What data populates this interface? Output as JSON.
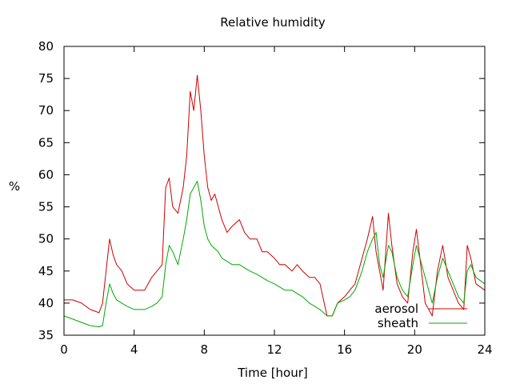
{
  "chart_data": {
    "type": "line",
    "title": "Relative humidity",
    "xlabel": "Time [hour]",
    "ylabel": "%",
    "xlim": [
      0,
      24
    ],
    "ylim": [
      35,
      80
    ],
    "xticks": [
      0,
      4,
      8,
      12,
      16,
      20,
      24
    ],
    "yticks": [
      35,
      40,
      45,
      50,
      55,
      60,
      65,
      70,
      75,
      80
    ],
    "grid": false,
    "legend_position": "bottom-right",
    "series": [
      {
        "name": "aerosol",
        "color": "#cc0000",
        "x": [
          0,
          0.5,
          1,
          1.5,
          2,
          2.2,
          2.4,
          2.6,
          2.8,
          3,
          3.3,
          3.6,
          4,
          4.3,
          4.6,
          5,
          5.3,
          5.6,
          5.8,
          6,
          6.2,
          6.5,
          6.8,
          7,
          7.2,
          7.4,
          7.6,
          7.8,
          8,
          8.2,
          8.4,
          8.6,
          8.8,
          9,
          9.3,
          9.6,
          10,
          10.3,
          10.6,
          11,
          11.3,
          11.6,
          12,
          12.3,
          12.6,
          13,
          13.3,
          13.6,
          14,
          14.3,
          14.6,
          15,
          15.3,
          15.6,
          16,
          16.3,
          16.6,
          17,
          17.3,
          17.6,
          17.8,
          18,
          18.2,
          18.5,
          18.7,
          19,
          19.3,
          19.6,
          19.9,
          20.1,
          20.3,
          20.6,
          21,
          21.3,
          21.6,
          21.9,
          22.2,
          22.5,
          22.8,
          23,
          23.2,
          23.5,
          24
        ],
        "values": [
          40.5,
          40.5,
          40,
          39,
          38.5,
          40,
          45,
          50,
          47.5,
          46,
          45,
          43,
          42,
          42,
          42,
          44,
          45,
          46,
          58,
          59.5,
          55,
          54,
          58,
          63,
          73,
          70,
          75.5,
          70,
          63,
          58,
          56,
          57,
          55,
          53,
          51,
          52,
          53,
          51,
          50,
          50,
          48,
          48,
          47,
          46,
          46,
          45,
          46,
          45,
          44,
          44,
          43,
          38,
          38,
          40,
          41,
          42,
          43,
          47,
          50,
          53.5,
          48,
          45,
          42,
          54,
          49,
          43,
          41,
          40,
          48,
          51.5,
          47,
          40,
          38,
          45,
          49,
          44,
          42,
          40,
          39,
          49,
          47,
          43,
          42
        ]
      },
      {
        "name": "sheath",
        "color": "#00aa00",
        "x": [
          0,
          0.5,
          1,
          1.5,
          2,
          2.2,
          2.4,
          2.6,
          2.8,
          3,
          3.3,
          3.6,
          4,
          4.3,
          4.6,
          5,
          5.3,
          5.6,
          5.8,
          6,
          6.2,
          6.5,
          6.8,
          7,
          7.2,
          7.4,
          7.6,
          7.8,
          8,
          8.2,
          8.4,
          8.6,
          8.8,
          9,
          9.3,
          9.6,
          10,
          10.3,
          10.6,
          11,
          11.3,
          11.6,
          12,
          12.3,
          12.6,
          13,
          13.3,
          13.6,
          14,
          14.3,
          14.6,
          15,
          15.3,
          15.6,
          16,
          16.3,
          16.6,
          17,
          17.3,
          17.6,
          17.8,
          18,
          18.2,
          18.5,
          18.7,
          19,
          19.3,
          19.6,
          19.9,
          20.1,
          20.3,
          20.6,
          21,
          21.3,
          21.6,
          21.9,
          22.2,
          22.5,
          22.8,
          23,
          23.2,
          23.5,
          24
        ],
        "values": [
          38,
          37.5,
          37,
          36.5,
          36.3,
          36.5,
          40,
          43,
          41.5,
          40.5,
          40,
          39.5,
          39,
          39,
          39,
          39.5,
          40,
          41,
          46,
          49,
          48,
          46,
          50,
          53,
          57,
          58,
          59,
          56,
          52,
          50,
          49,
          48.5,
          48,
          47,
          46.5,
          46,
          46,
          45.5,
          45,
          44.5,
          44,
          43.5,
          43,
          42.5,
          42,
          42,
          41.5,
          41,
          40,
          39.5,
          39,
          38,
          38,
          40,
          40.5,
          41,
          42,
          45,
          48,
          50,
          51,
          46,
          44,
          49,
          48,
          44,
          42,
          41,
          46,
          49,
          47,
          44,
          40,
          44,
          47,
          45,
          43,
          41,
          40,
          45,
          46,
          44,
          43
        ]
      }
    ]
  }
}
